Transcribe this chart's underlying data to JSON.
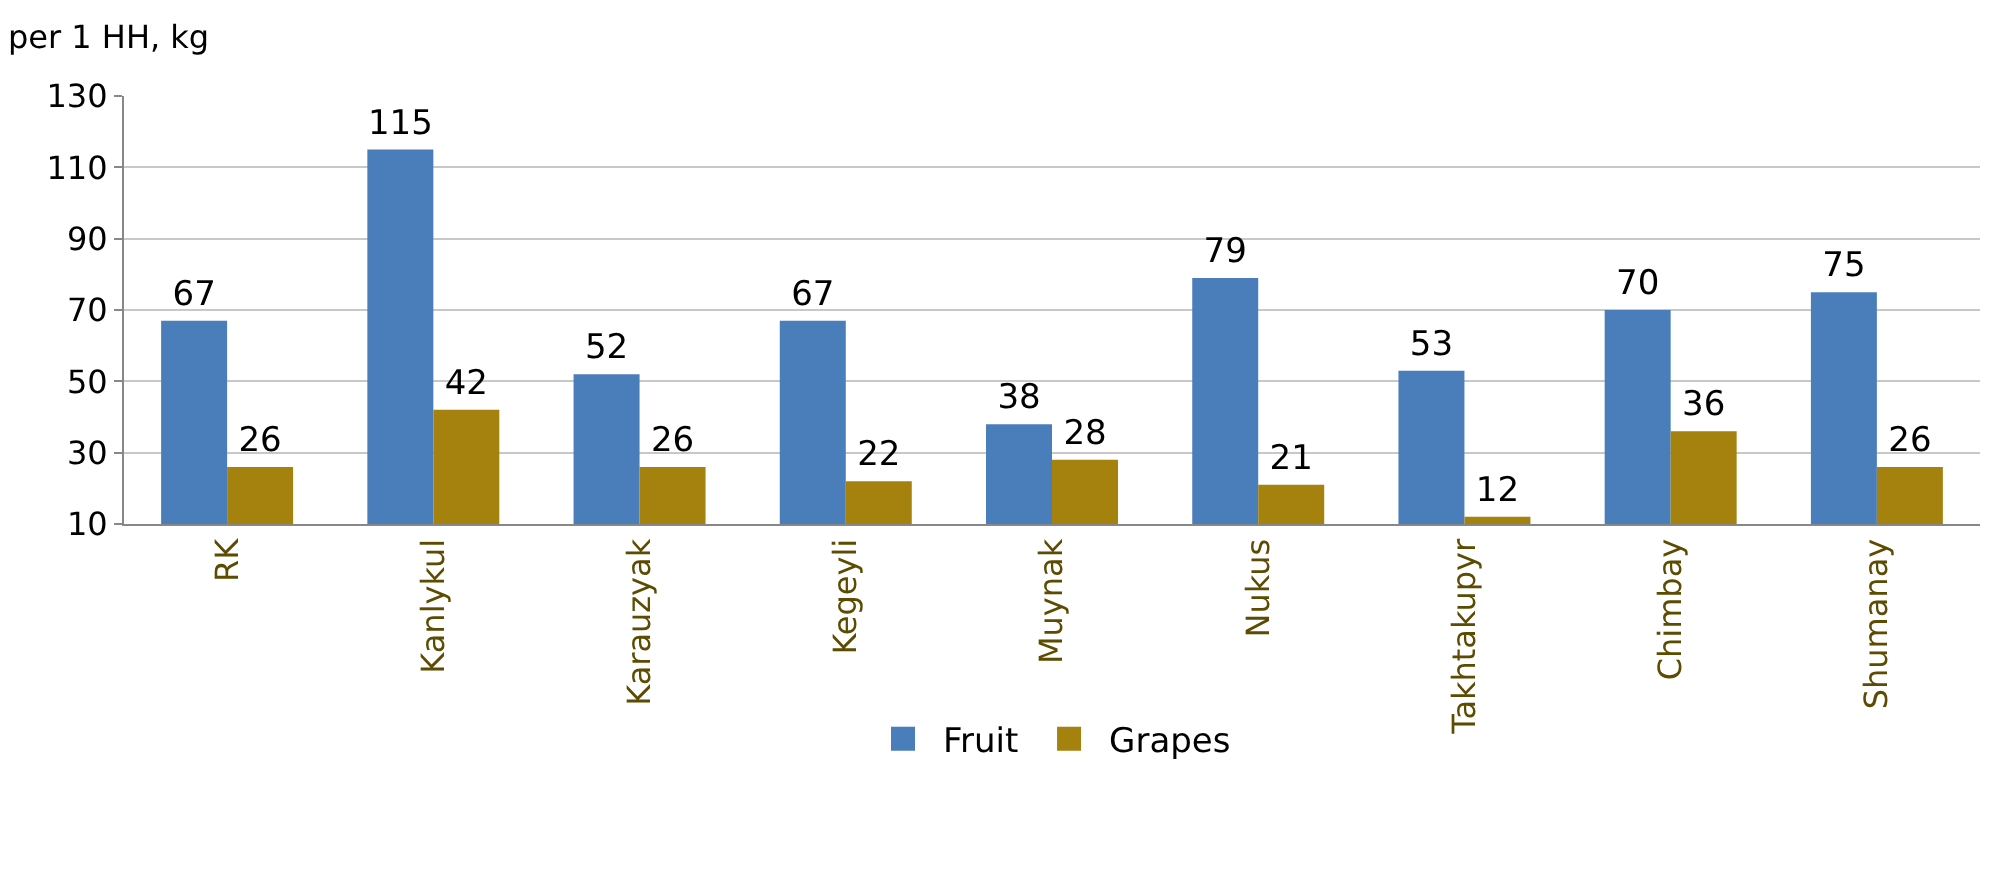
{
  "chart_data": {
    "type": "bar",
    "ylabel": "per 1 HH, kg",
    "categories": [
      "RK",
      "Kanlykul",
      "Karauzyak",
      "Kegeyli",
      "Muynak",
      "Nukus",
      "Takhtakupyr",
      "Chimbay",
      "Shumanay"
    ],
    "series": [
      {
        "name": "Fruit",
        "color": "#4a7ebb",
        "values": [
          67,
          115,
          52,
          67,
          38,
          79,
          53,
          70,
          75
        ]
      },
      {
        "name": "Grapes",
        "color": "#a5820e",
        "values": [
          26,
          42,
          26,
          22,
          28,
          21,
          12,
          36,
          26
        ]
      }
    ],
    "ylim": [
      10,
      130
    ],
    "yticks": [
      10,
      30,
      50,
      70,
      90,
      110,
      130
    ],
    "grid": "y",
    "legend": "bottom",
    "data_labels": true
  }
}
